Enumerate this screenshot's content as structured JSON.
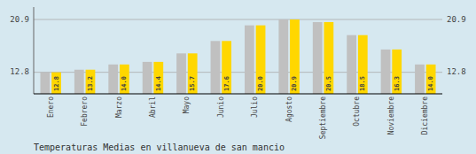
{
  "chart_data": {
    "type": "bar",
    "title": "Temperaturas Medias en villanueva de san mancio",
    "categories": [
      "Enero",
      "Febrero",
      "Marzo",
      "Abril",
      "Mayo",
      "Junio",
      "Julio",
      "Agosto",
      "Septiembre",
      "Octubre",
      "Noviembre",
      "Diciembre"
    ],
    "values": [
      12.8,
      13.2,
      14.0,
      14.4,
      15.7,
      17.6,
      20.0,
      20.9,
      20.5,
      18.5,
      16.3,
      14.0
    ],
    "value_labels": [
      "12.8",
      "13.2",
      "14.0",
      "14.4",
      "15.7",
      "17.6",
      "20.0",
      "20.9",
      "20.5",
      "18.5",
      "16.3",
      "14.0"
    ],
    "color": "#FFD700",
    "data_labels": true,
    "ylim": [
      9.5,
      22.8
    ],
    "yticks": [
      12.8,
      20.9
    ],
    "y2lim": [
      9.5,
      22.8
    ],
    "y2ticks": [
      12.8,
      20.9
    ],
    "grid": true
  }
}
